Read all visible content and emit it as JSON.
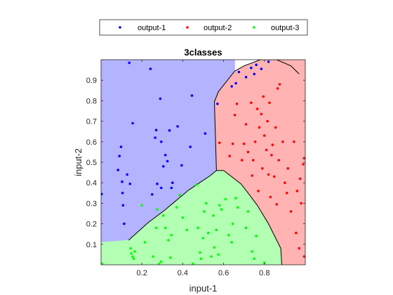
{
  "chart_data": {
    "type": "scatter",
    "title": "3classes",
    "xlabel": "input-1",
    "ylabel": "input-2",
    "xlim": [
      0,
      1
    ],
    "ylim": [
      0,
      1
    ],
    "xticks": [
      0.2,
      0.4,
      0.6,
      0.8
    ],
    "yticks": [
      0.1,
      0.2,
      0.3,
      0.4,
      0.5,
      0.6,
      0.7,
      0.8,
      0.9
    ],
    "grid": false,
    "legend_position": "top",
    "regions": [
      {
        "name": "output-1",
        "color": "#b3b3ff",
        "boundary": [
          [
            0,
            1
          ],
          [
            0.655,
            1
          ],
          [
            0.655,
            0.945
          ],
          [
            0.575,
            0.845
          ],
          [
            0.555,
            0.795
          ],
          [
            0.565,
            0.46
          ],
          [
            0.535,
            0.435
          ],
          [
            0.43,
            0.365
          ],
          [
            0.31,
            0.265
          ],
          [
            0.23,
            0.205
          ],
          [
            0.135,
            0.12
          ],
          [
            0,
            0.11
          ]
        ]
      },
      {
        "name": "output-2",
        "color": "#ffb3b3",
        "boundary": [
          [
            0.655,
            0.945
          ],
          [
            0.7,
            0.97
          ],
          [
            0.78,
            1
          ],
          [
            1,
            1
          ],
          [
            1,
            0
          ],
          [
            0.885,
            0
          ],
          [
            0.88,
            0.08
          ],
          [
            0.86,
            0.12
          ],
          [
            0.82,
            0.2
          ],
          [
            0.765,
            0.29
          ],
          [
            0.72,
            0.35
          ],
          [
            0.685,
            0.395
          ],
          [
            0.6,
            0.46
          ],
          [
            0.565,
            0.46
          ],
          [
            0.555,
            0.795
          ],
          [
            0.575,
            0.845
          ]
        ]
      },
      {
        "name": "output-3",
        "color": "#b3ffb3",
        "boundary": [
          [
            0,
            0
          ],
          [
            0.885,
            0
          ],
          [
            0.88,
            0.08
          ],
          [
            0.86,
            0.12
          ],
          [
            0.82,
            0.2
          ],
          [
            0.765,
            0.29
          ],
          [
            0.72,
            0.35
          ],
          [
            0.685,
            0.395
          ],
          [
            0.6,
            0.46
          ],
          [
            0.565,
            0.46
          ],
          [
            0.535,
            0.435
          ],
          [
            0.43,
            0.365
          ],
          [
            0.31,
            0.265
          ],
          [
            0.23,
            0.205
          ],
          [
            0.135,
            0.12
          ],
          [
            0,
            0.11
          ]
        ]
      }
    ],
    "boundaries": [
      [
        [
          0.135,
          0.12
        ],
        [
          0.23,
          0.205
        ],
        [
          0.31,
          0.265
        ],
        [
          0.43,
          0.365
        ],
        [
          0.535,
          0.435
        ],
        [
          0.565,
          0.46
        ]
      ],
      [
        [
          0.565,
          0.46
        ],
        [
          0.6,
          0.46
        ],
        [
          0.685,
          0.395
        ],
        [
          0.72,
          0.35
        ],
        [
          0.765,
          0.29
        ],
        [
          0.82,
          0.2
        ],
        [
          0.86,
          0.12
        ],
        [
          0.88,
          0.08
        ],
        [
          0.885,
          0
        ]
      ],
      [
        [
          0.565,
          0.46
        ],
        [
          0.555,
          0.795
        ],
        [
          0.575,
          0.845
        ],
        [
          0.655,
          0.945
        ],
        [
          0.7,
          0.97
        ],
        [
          0.78,
          1
        ],
        [
          0.86,
          1
        ],
        [
          0.93,
          0.97
        ],
        [
          0.97,
          0.93
        ]
      ]
    ],
    "series": [
      {
        "name": "output-1",
        "color": "#0000ff",
        "points": [
          [
            0.003,
            0.345
          ],
          [
            0.083,
            0.462
          ],
          [
            0.09,
            0.53
          ],
          [
            0.098,
            0.575
          ],
          [
            0.103,
            0.405
          ],
          [
            0.105,
            0.35
          ],
          [
            0.108,
            0.29
          ],
          [
            0.113,
            0.2
          ],
          [
            0.128,
            0.44
          ],
          [
            0.138,
            0.985
          ],
          [
            0.142,
            0.395
          ],
          [
            0.155,
            0.69
          ],
          [
            0.242,
            0.955
          ],
          [
            0.25,
            0.343
          ],
          [
            0.265,
            0.62
          ],
          [
            0.27,
            0.657
          ],
          [
            0.275,
            0.395
          ],
          [
            0.29,
            0.81
          ],
          [
            0.295,
            0.6
          ],
          [
            0.295,
            0.375
          ],
          [
            0.305,
            0.48
          ],
          [
            0.315,
            0.535
          ],
          [
            0.325,
            0.505
          ],
          [
            0.335,
            0.655
          ],
          [
            0.345,
            0.375
          ],
          [
            0.35,
            0.4
          ],
          [
            0.375,
            0.675
          ],
          [
            0.395,
            0.485
          ],
          [
            0.445,
            0.825
          ],
          [
            0.437,
            0.575
          ],
          [
            0.51,
            0.64
          ],
          [
            0.57,
            0.785
          ],
          [
            0.64,
            0.87
          ],
          [
            0.66,
            0.885
          ],
          [
            0.675,
            0.94
          ],
          [
            0.71,
            0.915
          ],
          [
            0.735,
            0.96
          ],
          [
            0.75,
            0.93
          ],
          [
            0.76,
            0.975
          ],
          [
            0.785,
            0.955
          ],
          [
            0.82,
            0.99
          ]
        ]
      },
      {
        "name": "output-2",
        "color": "#ff0000",
        "points": [
          [
            0.58,
            0.595
          ],
          [
            0.63,
            0.53
          ],
          [
            0.645,
            0.59
          ],
          [
            0.655,
            0.73
          ],
          [
            0.665,
            0.785
          ],
          [
            0.69,
            0.51
          ],
          [
            0.7,
            0.59
          ],
          [
            0.71,
            0.685
          ],
          [
            0.72,
            0.55
          ],
          [
            0.735,
            0.79
          ],
          [
            0.74,
            0.435
          ],
          [
            0.745,
            0.51
          ],
          [
            0.755,
            0.6
          ],
          [
            0.765,
            0.76
          ],
          [
            0.77,
            0.36
          ],
          [
            0.775,
            0.67
          ],
          [
            0.785,
            0.735
          ],
          [
            0.79,
            0.47
          ],
          [
            0.795,
            0.82
          ],
          [
            0.8,
            0.63
          ],
          [
            0.81,
            0.56
          ],
          [
            0.815,
            0.7
          ],
          [
            0.82,
            0.44
          ],
          [
            0.825,
            0.79
          ],
          [
            0.83,
            0.33
          ],
          [
            0.835,
            0.535
          ],
          [
            0.84,
            0.585
          ],
          [
            0.848,
            0.43
          ],
          [
            0.855,
            0.67
          ],
          [
            0.86,
            0.295
          ],
          [
            0.865,
            0.86
          ],
          [
            0.87,
            0.51
          ],
          [
            0.875,
            0.88
          ],
          [
            0.89,
            0.6
          ],
          [
            0.9,
            0.4
          ],
          [
            0.91,
            0.35
          ],
          [
            0.915,
            0.47
          ],
          [
            0.93,
            0.26
          ],
          [
            0.945,
            0.6
          ],
          [
            0.955,
            0.155
          ],
          [
            0.96,
            0.36
          ],
          [
            0.97,
            0.08
          ],
          [
            0.975,
            0.42
          ],
          [
            0.98,
            0.3
          ],
          [
            0.99,
            0.49
          ],
          [
            0.995,
            0.52
          ],
          [
            0.995,
            0.04
          ]
        ]
      },
      {
        "name": "output-3",
        "color": "#00ff00",
        "points": [
          [
            0.005,
            0.005
          ],
          [
            0.145,
            0.08
          ],
          [
            0.148,
            0.055
          ],
          [
            0.155,
            0.04
          ],
          [
            0.16,
            0.03
          ],
          [
            0.165,
            0.065
          ],
          [
            0.2,
            0.29
          ],
          [
            0.215,
            0.11
          ],
          [
            0.255,
            0.04
          ],
          [
            0.27,
            0.18
          ],
          [
            0.275,
            0.27
          ],
          [
            0.285,
            0.005
          ],
          [
            0.295,
            0.015
          ],
          [
            0.305,
            0.24
          ],
          [
            0.315,
            0.18
          ],
          [
            0.33,
            0.12
          ],
          [
            0.34,
            0.035
          ],
          [
            0.345,
            0.145
          ],
          [
            0.37,
            0.28
          ],
          [
            0.385,
            0.34
          ],
          [
            0.4,
            0.23
          ],
          [
            0.42,
            0.17
          ],
          [
            0.45,
            0.005
          ],
          [
            0.465,
            0.39
          ],
          [
            0.475,
            0.18
          ],
          [
            0.485,
            0.06
          ],
          [
            0.49,
            0.03
          ],
          [
            0.5,
            0.13
          ],
          [
            0.505,
            0.26
          ],
          [
            0.515,
            0.3
          ],
          [
            0.525,
            0.155
          ],
          [
            0.54,
            0.04
          ],
          [
            0.55,
            0.24
          ],
          [
            0.555,
            0.085
          ],
          [
            0.565,
            0.17
          ],
          [
            0.575,
            0.05
          ],
          [
            0.58,
            0.29
          ],
          [
            0.59,
            0.27
          ],
          [
            0.61,
            0.32
          ],
          [
            0.625,
            0.145
          ],
          [
            0.64,
            0.11
          ],
          [
            0.645,
            0.2
          ],
          [
            0.66,
            0.325
          ],
          [
            0.67,
            0.28
          ],
          [
            0.71,
            0.18
          ],
          [
            0.72,
            0.26
          ],
          [
            0.74,
            0.065
          ],
          [
            0.75,
            0.03
          ],
          [
            0.76,
            0.14
          ],
          [
            0.8,
            0.01
          ]
        ]
      }
    ]
  }
}
